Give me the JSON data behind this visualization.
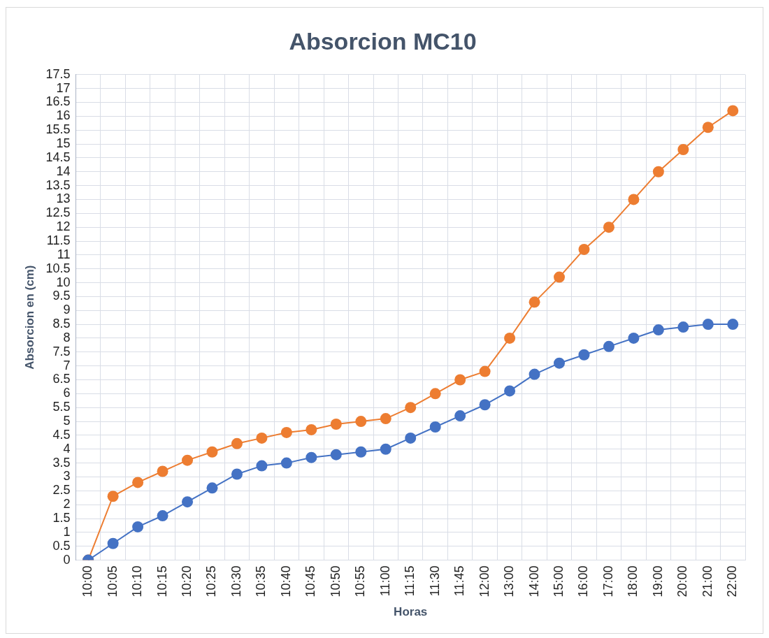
{
  "chart_data": {
    "type": "line",
    "title": "Absorcion MC10",
    "xlabel": "Horas",
    "ylabel": "Absorcion en (cm)",
    "categories": [
      "10:00",
      "10:05",
      "10:10",
      "10:15",
      "10:20",
      "10:25",
      "10:30",
      "10:35",
      "10:40",
      "10:45",
      "10:50",
      "10:55",
      "11:00",
      "11:15",
      "11:30",
      "11:45",
      "12:00",
      "13:00",
      "14:00",
      "15:00",
      "16:00",
      "17:00",
      "18:00",
      "19:00",
      "20:00",
      "21:00",
      "22:00"
    ],
    "series": [
      {
        "color": "#4472c4",
        "values": [
          0,
          0.6,
          1.2,
          1.6,
          2.1,
          2.6,
          3.1,
          3.4,
          3.5,
          3.7,
          3.8,
          3.9,
          4.0,
          4.4,
          4.8,
          5.2,
          5.6,
          6.1,
          6.7,
          7.1,
          7.4,
          7.7,
          8.0,
          8.3,
          8.4,
          8.5,
          8.5
        ]
      },
      {
        "color": "#ed7d31",
        "values": [
          0,
          2.3,
          2.8,
          3.2,
          3.6,
          3.9,
          4.2,
          4.4,
          4.6,
          4.7,
          4.9,
          5.0,
          5.1,
          5.5,
          6.0,
          6.5,
          6.8,
          8.0,
          9.3,
          10.2,
          11.2,
          12.0,
          13.0,
          14.0,
          14.8,
          15.6,
          16.2
        ]
      }
    ],
    "ylim": [
      0,
      17.5
    ],
    "yticks": [
      0,
      0.5,
      1,
      1.5,
      2,
      2.5,
      3,
      3.5,
      4,
      4.5,
      5,
      5.5,
      6,
      6.5,
      7,
      7.5,
      8,
      8.5,
      9,
      9.5,
      10,
      10.5,
      11,
      11.5,
      12,
      12.5,
      13,
      13.5,
      14,
      14.5,
      15,
      15.5,
      16,
      16.5,
      17,
      17.5
    ],
    "grid": true,
    "legend": false,
    "marker": "circle",
    "line_style": "solid"
  }
}
